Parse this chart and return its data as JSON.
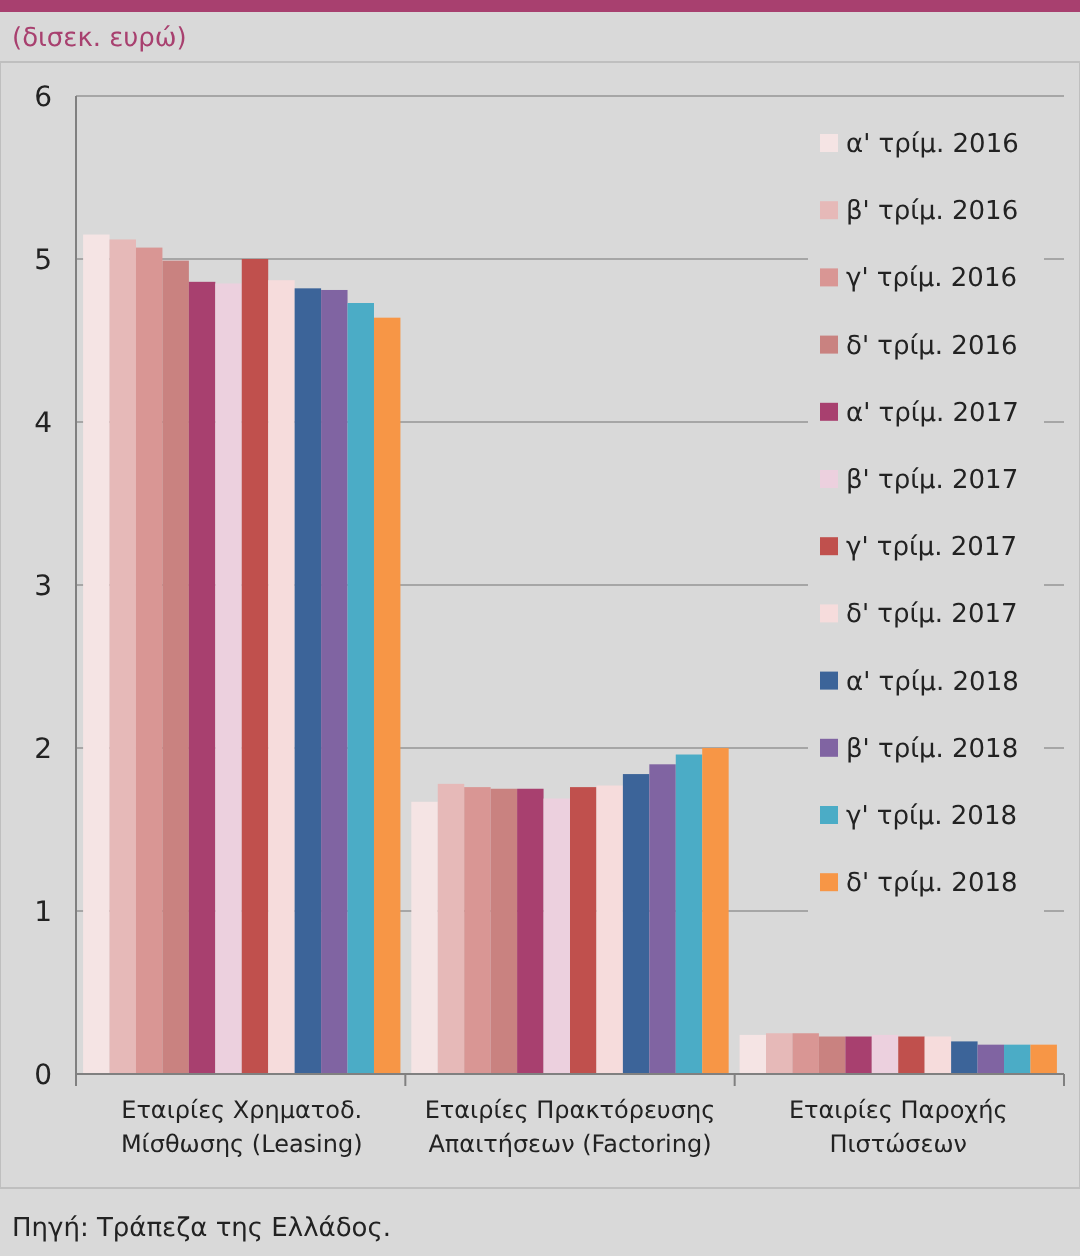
{
  "chart_data": {
    "type": "bar",
    "ylabel": "(δισεκ. ευρώ)",
    "categories": [
      "Εταιρίες Χρηματοδ. Μίσθωσης (Leasing)",
      "Εταιρίες Πρακτόρευσης Απαιτήσεων (Factoring)",
      "Εταιρίες Παροχής Πιστώσεων"
    ],
    "series": [
      {
        "name": "α' τρίμ. 2016",
        "color": "#f5e4e4",
        "values": [
          5.15,
          1.67,
          0.24
        ]
      },
      {
        "name": "β' τρίμ. 2016",
        "color": "#e6b9b8",
        "values": [
          5.12,
          1.78,
          0.25
        ]
      },
      {
        "name": "γ' τρίμ. 2016",
        "color": "#d99694",
        "values": [
          5.07,
          1.76,
          0.25
        ]
      },
      {
        "name": "δ' τρίμ. 2016",
        "color": "#c98280",
        "values": [
          4.99,
          1.75,
          0.23
        ]
      },
      {
        "name": "α' τρίμ. 2017",
        "color": "#a8406f",
        "values": [
          4.86,
          1.75,
          0.23
        ]
      },
      {
        "name": "β' τρίμ. 2017",
        "color": "#ecd0de",
        "values": [
          4.85,
          1.69,
          0.24
        ]
      },
      {
        "name": "γ' τρίμ. 2017",
        "color": "#c0504d",
        "values": [
          5.0,
          1.76,
          0.23
        ]
      },
      {
        "name": "δ' τρίμ. 2017",
        "color": "#f6dcdc",
        "values": [
          4.87,
          1.77,
          0.23
        ]
      },
      {
        "name": "α' τρίμ. 2018",
        "color": "#3c6499",
        "values": [
          4.82,
          1.84,
          0.2
        ]
      },
      {
        "name": "β' τρίμ. 2018",
        "color": "#8064a2",
        "values": [
          4.81,
          1.9,
          0.18
        ]
      },
      {
        "name": "γ' τρίμ. 2018",
        "color": "#4bacc6",
        "values": [
          4.73,
          1.96,
          0.18
        ]
      },
      {
        "name": "δ' τρίμ. 2018",
        "color": "#f79646",
        "values": [
          4.64,
          2.0,
          0.18
        ]
      }
    ],
    "ylim": [
      0,
      6
    ],
    "yticks": [
      0,
      1,
      2,
      3,
      4,
      5,
      6
    ],
    "grid": "y",
    "legend": "top right",
    "annotations": [
      "Πηγή: Τράπεζα της Ελλάδος."
    ]
  }
}
